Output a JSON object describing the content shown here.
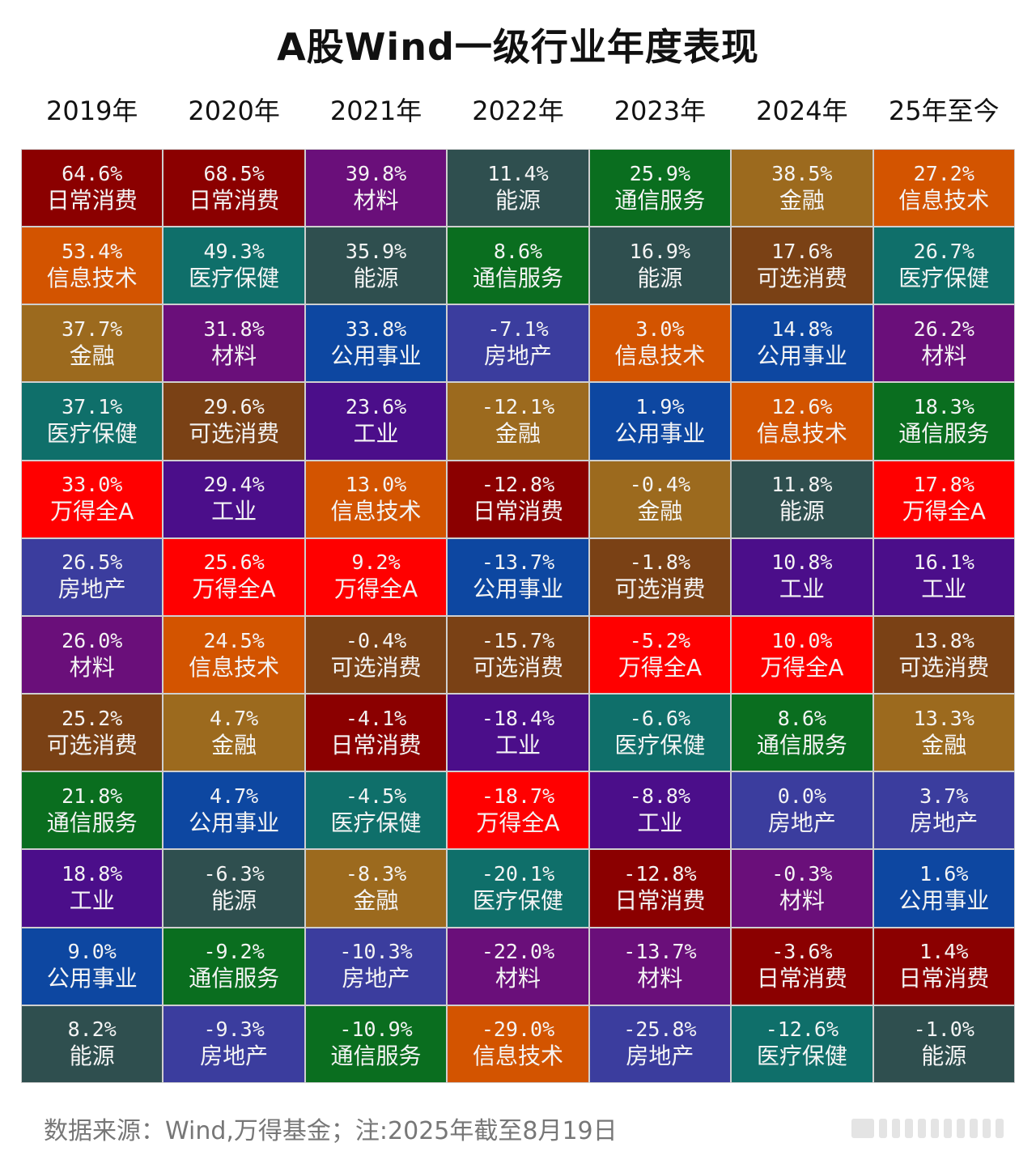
{
  "title": "A股Wind一级行业年度表现",
  "footer": "数据来源：Wind,万得基金；注:2025年截至8月19日",
  "chart_data": {
    "type": "table",
    "columns": [
      "2019年",
      "2020年",
      "2021年",
      "2022年",
      "2023年",
      "2024年",
      "25年至今"
    ],
    "colors": {
      "日常消费": "#8b0000",
      "信息技术": "#d35400",
      "金融": "#9c6a1e",
      "医疗保健": "#0f6f6a",
      "万得全A": "#ff0000",
      "房地产": "#3b3d9e",
      "材料": "#6a0f7a",
      "可选消费": "#7a4115",
      "通信服务": "#0a6e1f",
      "工业": "#4b0e8a",
      "公用事业": "#0d47a1",
      "能源": "#2f4f4f"
    },
    "data": [
      [
        {
          "value": "64.6%",
          "name": "日常消费"
        },
        {
          "value": "53.4%",
          "name": "信息技术"
        },
        {
          "value": "37.7%",
          "name": "金融"
        },
        {
          "value": "37.1%",
          "name": "医疗保健"
        },
        {
          "value": "33.0%",
          "name": "万得全A"
        },
        {
          "value": "26.5%",
          "name": "房地产"
        },
        {
          "value": "26.0%",
          "name": "材料"
        },
        {
          "value": "25.2%",
          "name": "可选消费"
        },
        {
          "value": "21.8%",
          "name": "通信服务"
        },
        {
          "value": "18.8%",
          "name": "工业"
        },
        {
          "value": "9.0%",
          "name": "公用事业"
        },
        {
          "value": "8.2%",
          "name": "能源"
        }
      ],
      [
        {
          "value": "68.5%",
          "name": "日常消费"
        },
        {
          "value": "49.3%",
          "name": "医疗保健"
        },
        {
          "value": "31.8%",
          "name": "材料"
        },
        {
          "value": "29.6%",
          "name": "可选消费"
        },
        {
          "value": "29.4%",
          "name": "工业"
        },
        {
          "value": "25.6%",
          "name": "万得全A"
        },
        {
          "value": "24.5%",
          "name": "信息技术"
        },
        {
          "value": "4.7%",
          "name": "金融"
        },
        {
          "value": "4.7%",
          "name": "公用事业"
        },
        {
          "value": "-6.3%",
          "name": "能源"
        },
        {
          "value": "-9.2%",
          "name": "通信服务"
        },
        {
          "value": "-9.3%",
          "name": "房地产"
        }
      ],
      [
        {
          "value": "39.8%",
          "name": "材料"
        },
        {
          "value": "35.9%",
          "name": "能源"
        },
        {
          "value": "33.8%",
          "name": "公用事业"
        },
        {
          "value": "23.6%",
          "name": "工业"
        },
        {
          "value": "13.0%",
          "name": "信息技术"
        },
        {
          "value": "9.2%",
          "name": "万得全A"
        },
        {
          "value": "-0.4%",
          "name": "可选消费"
        },
        {
          "value": "-4.1%",
          "name": "日常消费"
        },
        {
          "value": "-4.5%",
          "name": "医疗保健"
        },
        {
          "value": "-8.3%",
          "name": "金融"
        },
        {
          "value": "-10.3%",
          "name": "房地产"
        },
        {
          "value": "-10.9%",
          "name": "通信服务"
        }
      ],
      [
        {
          "value": "11.4%",
          "name": "能源"
        },
        {
          "value": "8.6%",
          "name": "通信服务"
        },
        {
          "value": "-7.1%",
          "name": "房地产"
        },
        {
          "value": "-12.1%",
          "name": "金融"
        },
        {
          "value": "-12.8%",
          "name": "日常消费"
        },
        {
          "value": "-13.7%",
          "name": "公用事业"
        },
        {
          "value": "-15.7%",
          "name": "可选消费"
        },
        {
          "value": "-18.4%",
          "name": "工业"
        },
        {
          "value": "-18.7%",
          "name": "万得全A"
        },
        {
          "value": "-20.1%",
          "name": "医疗保健"
        },
        {
          "value": "-22.0%",
          "name": "材料"
        },
        {
          "value": "-29.0%",
          "name": "信息技术"
        }
      ],
      [
        {
          "value": "25.9%",
          "name": "通信服务"
        },
        {
          "value": "16.9%",
          "name": "能源"
        },
        {
          "value": "3.0%",
          "name": "信息技术"
        },
        {
          "value": "1.9%",
          "name": "公用事业"
        },
        {
          "value": "-0.4%",
          "name": "金融"
        },
        {
          "value": "-1.8%",
          "name": "可选消费"
        },
        {
          "value": "-5.2%",
          "name": "万得全A"
        },
        {
          "value": "-6.6%",
          "name": "医疗保健"
        },
        {
          "value": "-8.8%",
          "name": "工业"
        },
        {
          "value": "-12.8%",
          "name": "日常消费"
        },
        {
          "value": "-13.7%",
          "name": "材料"
        },
        {
          "value": "-25.8%",
          "name": "房地产"
        }
      ],
      [
        {
          "value": "38.5%",
          "name": "金融"
        },
        {
          "value": "17.6%",
          "name": "可选消费"
        },
        {
          "value": "14.8%",
          "name": "公用事业"
        },
        {
          "value": "12.6%",
          "name": "信息技术"
        },
        {
          "value": "11.8%",
          "name": "能源"
        },
        {
          "value": "10.8%",
          "name": "工业"
        },
        {
          "value": "10.0%",
          "name": "万得全A"
        },
        {
          "value": "8.6%",
          "name": "通信服务"
        },
        {
          "value": "0.0%",
          "name": "房地产"
        },
        {
          "value": "-0.3%",
          "name": "材料"
        },
        {
          "value": "-3.6%",
          "name": "日常消费"
        },
        {
          "value": "-12.6%",
          "name": "医疗保健"
        }
      ],
      [
        {
          "value": "27.2%",
          "name": "信息技术"
        },
        {
          "value": "26.7%",
          "name": "医疗保健"
        },
        {
          "value": "26.2%",
          "name": "材料"
        },
        {
          "value": "18.3%",
          "name": "通信服务"
        },
        {
          "value": "17.8%",
          "name": "万得全A"
        },
        {
          "value": "16.1%",
          "name": "工业"
        },
        {
          "value": "13.8%",
          "name": "可选消费"
        },
        {
          "value": "13.3%",
          "name": "金融"
        },
        {
          "value": "3.7%",
          "name": "房地产"
        },
        {
          "value": "1.6%",
          "name": "公用事业"
        },
        {
          "value": "1.4%",
          "name": "日常消费"
        },
        {
          "value": "-1.0%",
          "name": "能源"
        }
      ]
    ]
  }
}
